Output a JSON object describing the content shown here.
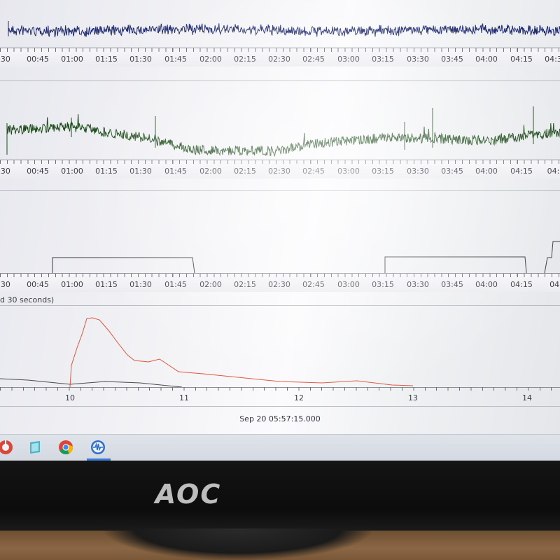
{
  "panels": [
    {
      "axis_labels": [
        ":30",
        "00:45",
        "01:00",
        "01:15",
        "01:30",
        "01:45",
        "02:00",
        "02:15",
        "02:30",
        "02:45",
        "03:00",
        "03:15",
        "03:30",
        "03:45",
        "04:00",
        "04:15",
        "04:30"
      ],
      "trace_color": "#1f2a6e"
    },
    {
      "axis_labels": [
        ":30",
        "00:45",
        "01:00",
        "01:15",
        "01:30",
        "01:45",
        "02:00",
        "02:15",
        "02:30",
        "02:45",
        "03:00",
        "03:15",
        "03:30",
        "03:45",
        "04:00",
        "04:15",
        "04:1"
      ],
      "trace_color": "#1d4a1a"
    },
    {
      "axis_labels": [
        ":30",
        "00:45",
        "01:00",
        "01:15",
        "01:30",
        "01:45",
        "02:00",
        "02:15",
        "02:30",
        "02:45",
        "03:00",
        "03:15",
        "03:30",
        "03:45",
        "04:00",
        "04:15",
        "04:"
      ],
      "trace_color": "#3a3a3a"
    }
  ],
  "bottom_panel": {
    "caption": "d 30 seconds)",
    "axis_labels": [
      "10",
      "11",
      "12",
      "13",
      "14"
    ],
    "red_color": "#e0553c",
    "gray_color": "#4a4a4a"
  },
  "timestamp": "Sep 20 05:57:15.000",
  "taskbar": {
    "icons": [
      "tool-icon",
      "tablet-icon",
      "chrome-icon",
      "app-waveform-icon"
    ]
  },
  "monitor": {
    "brand": "AOC"
  }
}
